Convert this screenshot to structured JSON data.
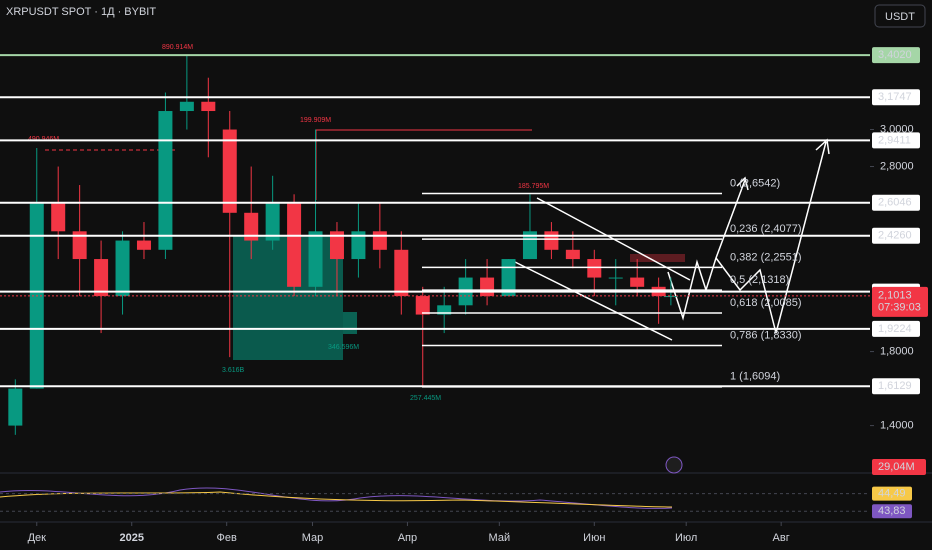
{
  "header": {
    "symbol": "XRPUSDT SPOT · 1Д · BYBIT",
    "currency": "USDT"
  },
  "chart_data": {
    "type": "candlestick",
    "x": [
      -7,
      0,
      7,
      14,
      21,
      28,
      35,
      42,
      49,
      56,
      63,
      70,
      77,
      84,
      91,
      98,
      105,
      112,
      119,
      126,
      133,
      140,
      147,
      154,
      161,
      168,
      175,
      182,
      189,
      196,
      203,
      207
    ],
    "open": [
      1.4,
      1.6,
      2.6,
      2.45,
      2.3,
      2.1,
      2.4,
      2.35,
      3.1,
      3.15,
      3.0,
      2.55,
      2.4,
      2.6,
      2.15,
      2.45,
      2.3,
      2.45,
      2.35,
      2.1,
      2.0,
      2.05,
      2.2,
      2.1,
      2.3,
      2.45,
      2.35,
      2.3,
      2.2,
      2.2,
      2.15,
      2.1
    ],
    "high": [
      1.65,
      2.9,
      2.8,
      2.7,
      2.4,
      2.45,
      2.5,
      3.2,
      3.402,
      3.28,
      3.1,
      2.8,
      2.75,
      2.65,
      3.0,
      2.5,
      2.6,
      2.6,
      2.45,
      2.15,
      2.15,
      2.3,
      2.3,
      2.3,
      2.65,
      2.5,
      2.45,
      2.35,
      2.3,
      2.3,
      2.2,
      2.2
    ],
    "low": [
      1.35,
      1.6,
      2.3,
      2.1,
      1.9,
      2.0,
      2.3,
      2.3,
      3.0,
      2.85,
      1.77,
      2.3,
      2.35,
      2.1,
      2.1,
      2.1,
      2.2,
      2.25,
      2.0,
      1.61,
      1.9,
      2.0,
      2.05,
      2.1,
      2.3,
      2.3,
      2.25,
      2.1,
      2.05,
      2.1,
      1.95,
      2.05
    ],
    "close": [
      1.6,
      2.6,
      2.45,
      2.3,
      2.1,
      2.4,
      2.35,
      3.1,
      3.15,
      3.1,
      2.55,
      2.4,
      2.6,
      2.15,
      2.45,
      2.3,
      2.45,
      2.35,
      2.1,
      2.0,
      2.05,
      2.2,
      2.1,
      2.3,
      2.45,
      2.35,
      2.3,
      2.2,
      2.2,
      2.15,
      2.1,
      2.1
    ],
    "up_color": "#089981",
    "down_color": "#f23645",
    "xlim": [
      -12,
      272
    ],
    "ylim": [
      1.16,
      3.7
    ],
    "xticks": [
      {
        "value": 0,
        "label": "Дек"
      },
      {
        "value": 31,
        "label": "2025"
      },
      {
        "value": 62,
        "label": "Фев"
      },
      {
        "value": 90,
        "label": "Мар"
      },
      {
        "value": 121,
        "label": "Апр"
      },
      {
        "value": 151,
        "label": "Май"
      },
      {
        "value": 182,
        "label": "Июн"
      },
      {
        "value": 212,
        "label": "Июл"
      },
      {
        "value": 243,
        "label": "Авг"
      }
    ],
    "yticks": [
      {
        "value": 3,
        "label": "3,0000"
      },
      {
        "value": 2.8,
        "label": "2,8000"
      },
      {
        "value": 1.8,
        "label": "1,8000"
      },
      {
        "value": 1.4,
        "label": "1,4000"
      }
    ],
    "levels": [
      {
        "value": 3.402,
        "label": "3,4020"
      },
      {
        "value": 3.1747,
        "label": "3,1747"
      },
      {
        "value": 2.9411,
        "label": "2,9411"
      },
      {
        "value": 2.6046,
        "label": "2,6046"
      },
      {
        "value": 2.426,
        "label": "2,4260"
      },
      {
        "value": 2.1238,
        "label": "2,1238"
      },
      {
        "value": 1.9224,
        "label": "1,9224"
      },
      {
        "value": 1.6129,
        "label": "1,6129"
      }
    ],
    "fib": [
      {
        "value": 2.6542,
        "label": "0 (2,6542)"
      },
      {
        "value": 2.4077,
        "label": "0,236 (2,4077)"
      },
      {
        "value": 2.2551,
        "label": "0,382 (2,2551)"
      },
      {
        "value": 2.1318,
        "label": "0,5 (2,1318)"
      },
      {
        "value": 2.0085,
        "label": "0,618 (2,0085)"
      },
      {
        "value": 1.833,
        "label": "0,786 (1,8330)"
      },
      {
        "value": 1.6094,
        "label": "1 (1,6094)"
      }
    ],
    "last_price": {
      "value": 2.1013,
      "label": "2,1013"
    },
    "countdown": "07:39:03",
    "volume_label": "29,04M",
    "annotations": [
      "890.914M",
      "490.946M",
      "199.909M",
      "185.795M",
      "3.616B",
      "346.596M",
      "257.445M"
    ],
    "oscillator": {
      "ylim": [
        43.5,
        45
      ],
      "values": [
        {
          "value": 44.49,
          "label": "44,49"
        },
        {
          "value": 43.83,
          "label": "43,83"
        }
      ]
    }
  }
}
